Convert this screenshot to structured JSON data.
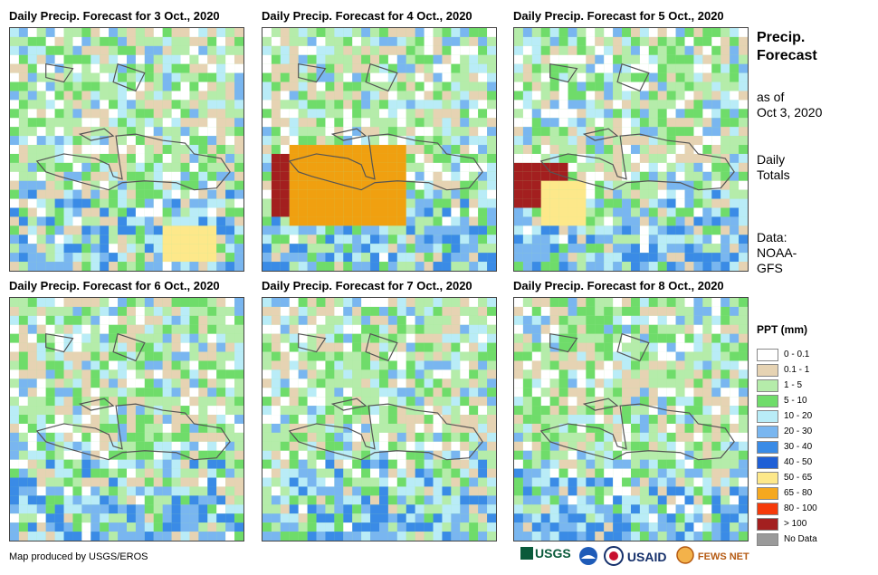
{
  "panels": [
    {
      "title": "Daily Precip. Forecast for 3 Oct., 2020",
      "heavy": [
        [
          0.76,
          0.88,
          "#fde88a",
          0.12,
          0.05
        ]
      ]
    },
    {
      "title": "Daily Precip. Forecast for 4 Oct., 2020",
      "heavy": [
        [
          0.2,
          0.64,
          "#a31f1f",
          0.18,
          0.1
        ],
        [
          0.34,
          0.62,
          "#f0a010",
          0.26,
          0.14
        ]
      ]
    },
    {
      "title": "Daily Precip. Forecast for 5 Oct., 2020",
      "heavy": [
        [
          0.06,
          0.62,
          "#a31f1f",
          0.14,
          0.06
        ],
        [
          0.18,
          0.7,
          "#fde88a",
          0.1,
          0.06
        ]
      ]
    },
    {
      "title": "Daily Precip. Forecast for 6 Oct., 2020",
      "heavy": []
    },
    {
      "title": "Daily Precip. Forecast for 7 Oct., 2020",
      "heavy": []
    },
    {
      "title": "Daily Precip. Forecast for 8 Oct., 2020",
      "heavy": []
    }
  ],
  "side": {
    "title_line1": "Precip.",
    "title_line2": "Forecast",
    "asof_line1": "as of",
    "asof_line2": "Oct 3, 2020",
    "totals_line1": "Daily",
    "totals_line2": "Totals",
    "data_line1": "Data:",
    "data_line2": "NOAA-",
    "data_line3": "GFS"
  },
  "legend": {
    "title": "PPT (mm)",
    "items": [
      {
        "label": "0 - 0.1",
        "color": "#ffffff"
      },
      {
        "label": "0.1 - 1",
        "color": "#e6d3b3"
      },
      {
        "label": "1 - 5",
        "color": "#b5ecaa"
      },
      {
        "label": "5 - 10",
        "color": "#6fdc6a"
      },
      {
        "label": "10 - 20",
        "color": "#b9ecf7"
      },
      {
        "label": "20 - 30",
        "color": "#79b6f0"
      },
      {
        "label": "30 - 40",
        "color": "#3a8be6"
      },
      {
        "label": "40 - 50",
        "color": "#1f5fd6"
      },
      {
        "label": "50 - 65",
        "color": "#fde88a"
      },
      {
        "label": "65 - 80",
        "color": "#f5a81f"
      },
      {
        "label": "80 - 100",
        "color": "#f53a0a"
      },
      {
        "label": "> 100",
        "color": "#a31f1f"
      },
      {
        "label": "No Data",
        "color": "#9a9a9a"
      }
    ]
  },
  "footer": "Map produced by USGS/EROS",
  "logos": {
    "usgs": "USGS",
    "usaid": "USAID",
    "fewsnet": "FEWS NET"
  }
}
